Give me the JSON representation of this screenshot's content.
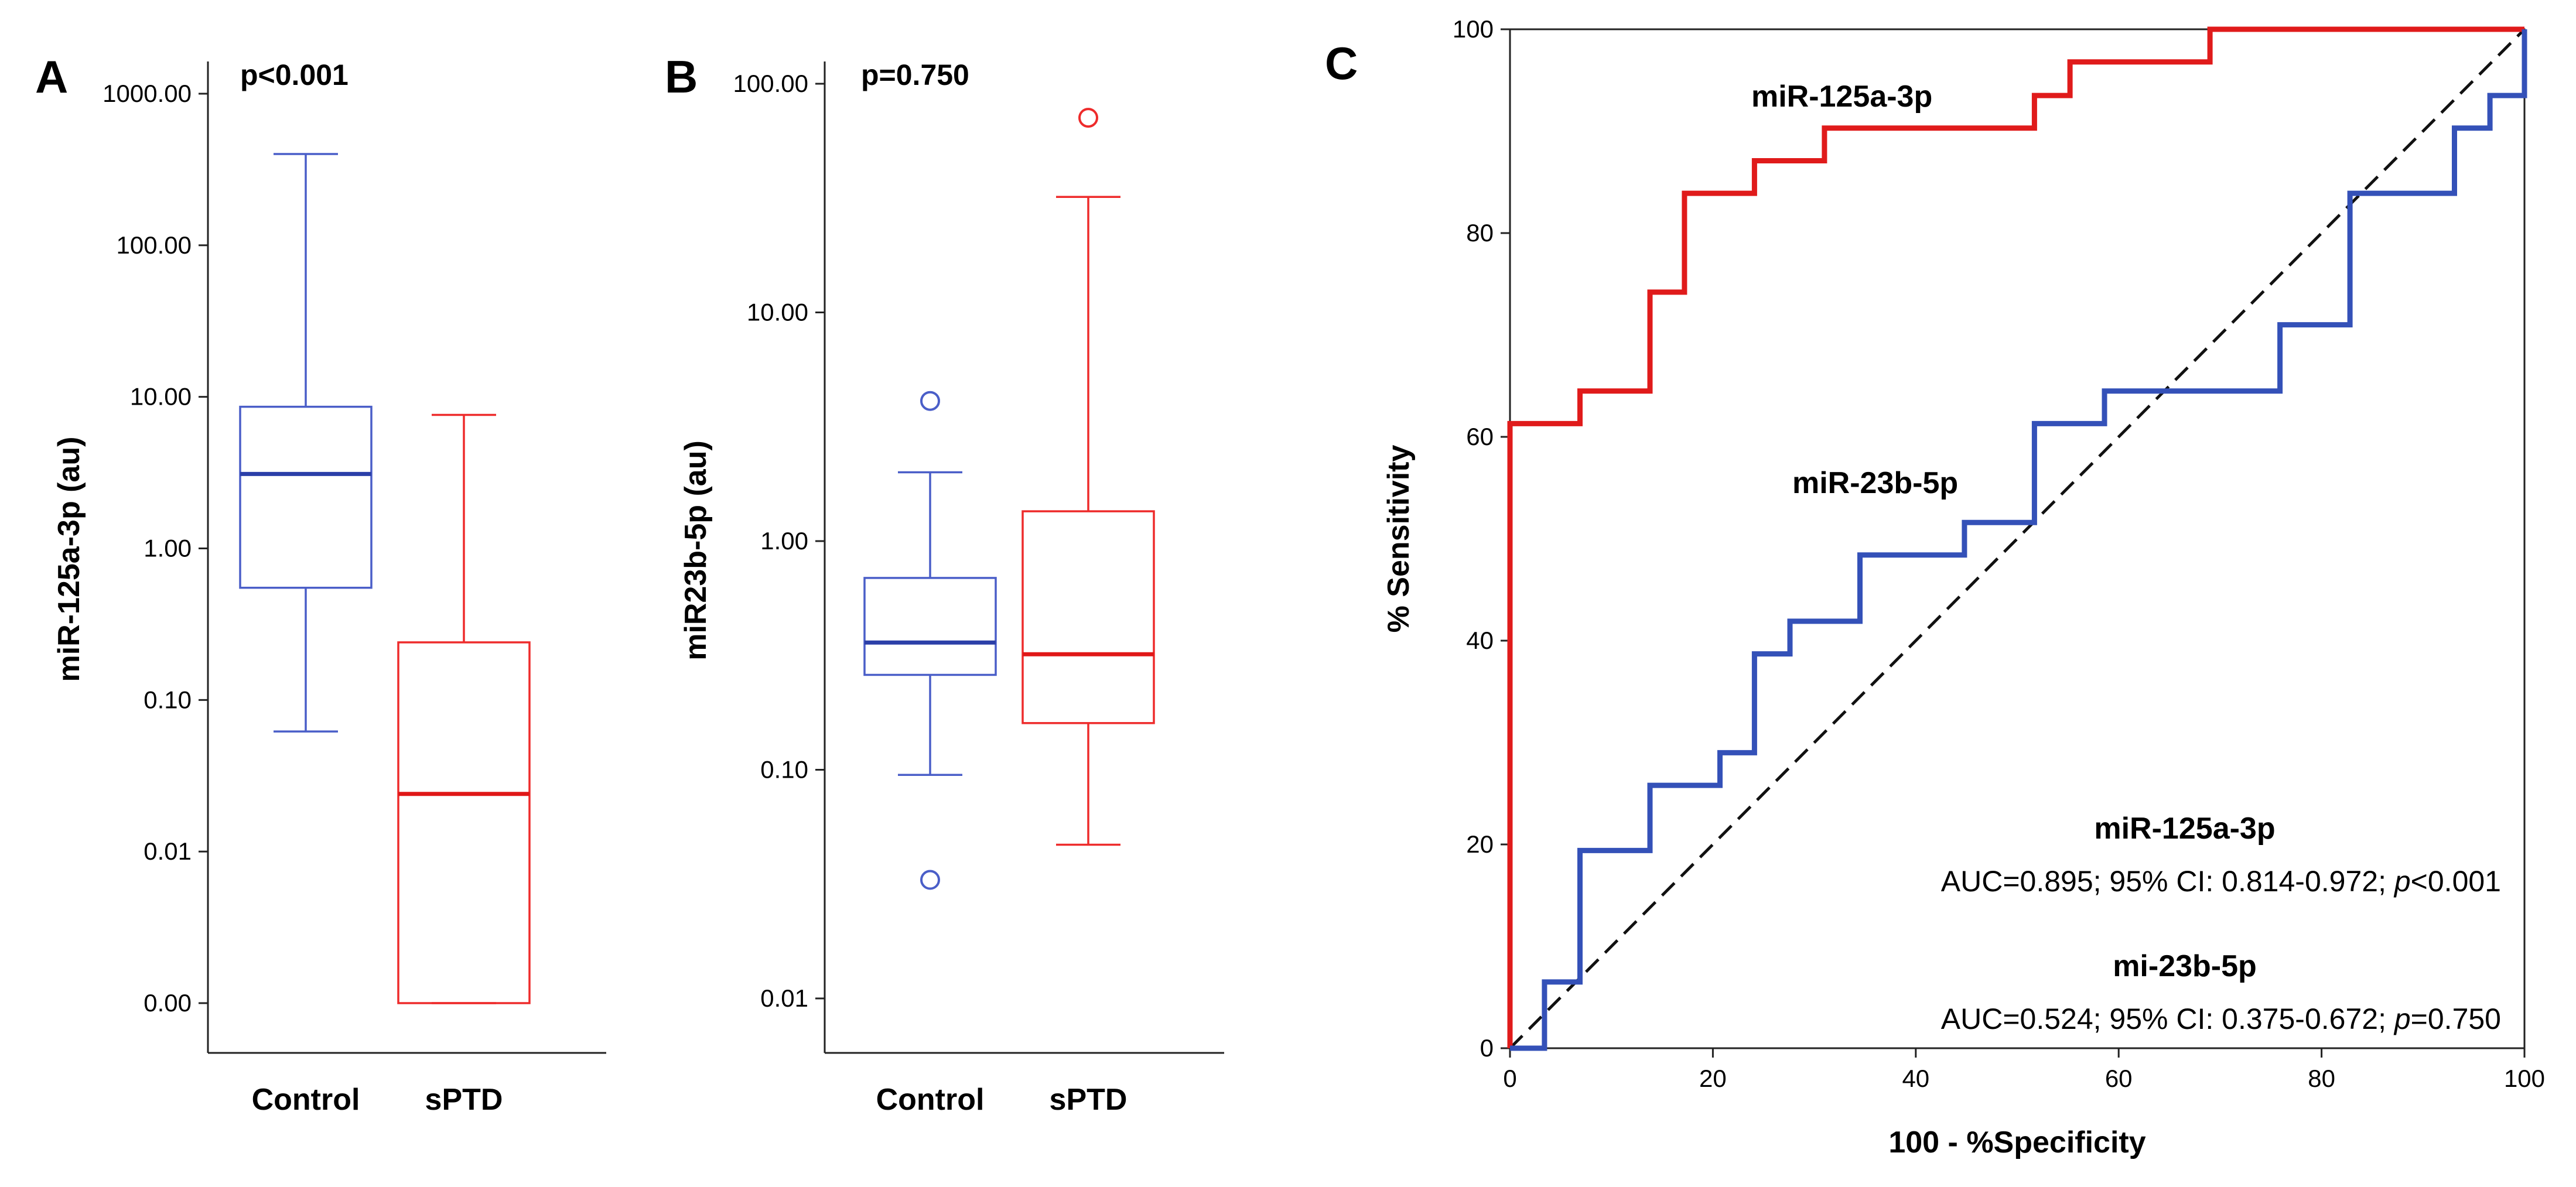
{
  "chart_data": [
    {
      "panel": "A",
      "type": "box",
      "annotation": "p<0.001",
      "ylabel": "miR-125a-3p (au)",
      "yscale": "log",
      "ylim": [
        0.001,
        1000
      ],
      "yticks": [
        {
          "value": 0.001,
          "label": "0.00"
        },
        {
          "value": 0.01,
          "label": "0.01"
        },
        {
          "value": 0.1,
          "label": "0.10"
        },
        {
          "value": 1,
          "label": "1.00"
        },
        {
          "value": 10,
          "label": "10.00"
        },
        {
          "value": 100,
          "label": "100.00"
        },
        {
          "value": 1000,
          "label": "1000.00"
        }
      ],
      "categories": [
        "Control",
        "sPTD"
      ],
      "boxes": [
        {
          "name": "Control",
          "color": "#4a5ec8",
          "median_color": "#2b3fa8",
          "whisker_low": 0.062,
          "q1": 0.55,
          "median": 3.1,
          "q3": 8.6,
          "whisker_high": 400,
          "outliers": []
        },
        {
          "name": "sPTD",
          "color": "#ee2b2b",
          "median_color": "#e01818",
          "whisker_low": 0.001,
          "q1": 0.001,
          "median": 0.024,
          "q3": 0.24,
          "whisker_high": 7.6,
          "outliers": []
        }
      ]
    },
    {
      "panel": "B",
      "type": "box",
      "annotation": "p=0.750",
      "ylabel": "miR23b-5p (au)",
      "yscale": "log",
      "ylim": [
        0.01,
        100
      ],
      "yticks": [
        {
          "value": 0.01,
          "label": "0.01"
        },
        {
          "value": 0.1,
          "label": "0.10"
        },
        {
          "value": 1,
          "label": "1.00"
        },
        {
          "value": 10,
          "label": "10.00"
        },
        {
          "value": 100,
          "label": "100.00"
        }
      ],
      "categories": [
        "Control",
        "sPTD"
      ],
      "boxes": [
        {
          "name": "Control",
          "color": "#4a5ec8",
          "median_color": "#2b3fa8",
          "whisker_low": 0.095,
          "q1": 0.26,
          "median": 0.36,
          "q3": 0.69,
          "whisker_high": 2.0,
          "outliers": [
            4.1,
            0.033
          ]
        },
        {
          "name": "sPTD",
          "color": "#ee2b2b",
          "median_color": "#e01818",
          "whisker_low": 0.047,
          "q1": 0.16,
          "median": 0.32,
          "q3": 1.35,
          "whisker_high": 32,
          "outliers": [
            71
          ]
        }
      ]
    },
    {
      "panel": "C",
      "type": "line",
      "subtype": "roc",
      "xlabel": "100 - %Specificity",
      "ylabel": "% Sensitivity",
      "xlim": [
        0,
        100
      ],
      "ylim": [
        0,
        100
      ],
      "xticks": [
        0,
        20,
        40,
        60,
        80,
        100
      ],
      "yticks": [
        0,
        20,
        40,
        60,
        80,
        100
      ],
      "diagonal": true,
      "series": [
        {
          "name": "miR-125a-3p",
          "color": "#e01b1b",
          "points": [
            [
              0,
              0
            ],
            [
              0,
              61.3
            ],
            [
              6.9,
              61.3
            ],
            [
              6.9,
              64.5
            ],
            [
              13.8,
              64.5
            ],
            [
              13.8,
              74.2
            ],
            [
              17.2,
              74.2
            ],
            [
              17.2,
              83.9
            ],
            [
              24.1,
              83.9
            ],
            [
              24.1,
              87.1
            ],
            [
              31,
              87.1
            ],
            [
              31,
              90.3
            ],
            [
              51.7,
              90.3
            ],
            [
              51.7,
              93.5
            ],
            [
              55.2,
              93.5
            ],
            [
              55.2,
              96.8
            ],
            [
              69,
              96.8
            ],
            [
              69,
              100
            ],
            [
              100,
              100
            ]
          ]
        },
        {
          "name": "miR-23b-5p",
          "color": "#3451b8",
          "points": [
            [
              0,
              0
            ],
            [
              3.4,
              0
            ],
            [
              3.4,
              6.5
            ],
            [
              6.9,
              6.5
            ],
            [
              6.9,
              19.4
            ],
            [
              13.8,
              19.4
            ],
            [
              13.8,
              25.8
            ],
            [
              20.7,
              25.8
            ],
            [
              20.7,
              29
            ],
            [
              24.1,
              29
            ],
            [
              24.1,
              38.7
            ],
            [
              27.6,
              38.7
            ],
            [
              27.6,
              41.9
            ],
            [
              34.5,
              41.9
            ],
            [
              34.5,
              48.4
            ],
            [
              44.8,
              48.4
            ],
            [
              44.8,
              51.6
            ],
            [
              51.7,
              51.6
            ],
            [
              51.7,
              61.3
            ],
            [
              58.6,
              61.3
            ],
            [
              58.6,
              64.5
            ],
            [
              75.9,
              64.5
            ],
            [
              75.9,
              71
            ],
            [
              82.8,
              71
            ],
            [
              82.8,
              83.9
            ],
            [
              93.1,
              83.9
            ],
            [
              93.1,
              90.3
            ],
            [
              96.6,
              90.3
            ],
            [
              96.6,
              93.5
            ],
            [
              100,
              93.5
            ],
            [
              100,
              100
            ]
          ]
        }
      ],
      "annotations": {
        "a_title": "miR-125a-3p",
        "a_text": "AUC=0.895; 95% CI: 0.814-0.972; ",
        "a_p": "p",
        "a_ptail": "<0.001",
        "b_title": "mi-23b-5p",
        "b_text": "AUC=0.524; 95% CI: 0.375-0.672; ",
        "b_p": "p",
        "b_ptail": "=0.750"
      }
    }
  ]
}
